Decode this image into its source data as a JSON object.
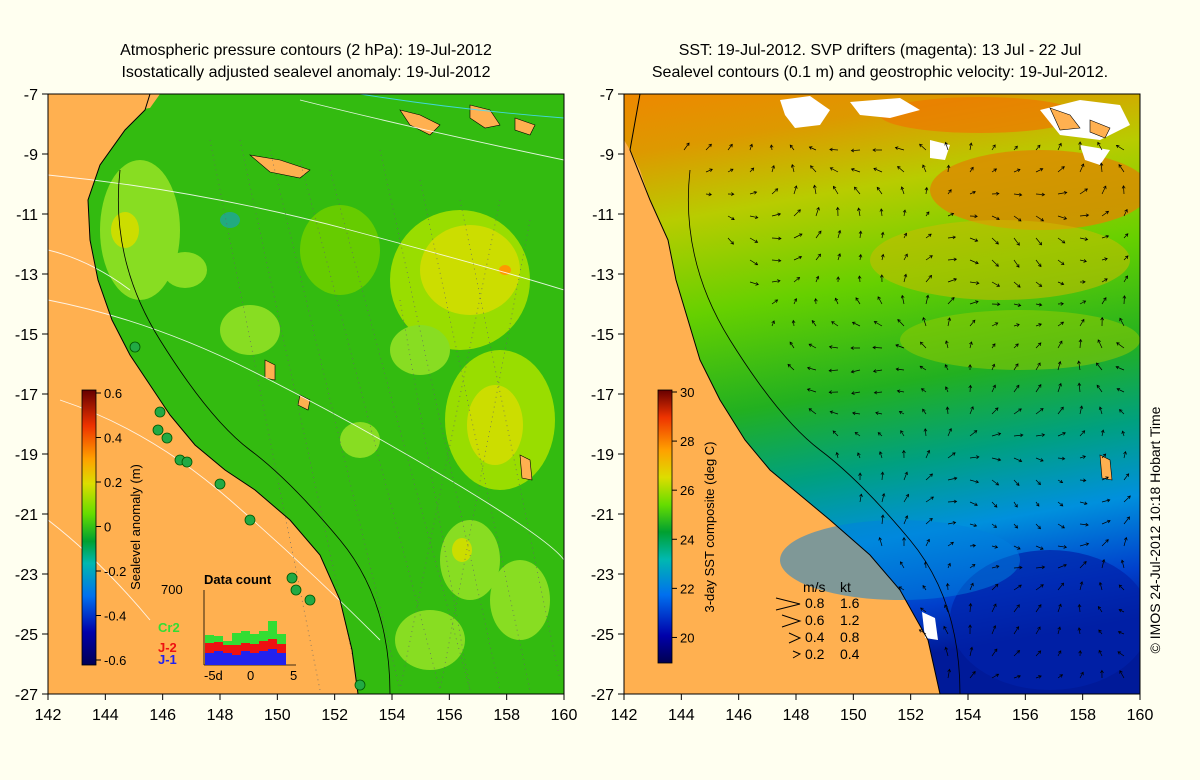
{
  "left_panel": {
    "title_line1": "Atmospheric pressure contours (2 hPa): 19-Jul-2012",
    "title_line2": "Isostatically adjusted sealevel anomaly: 19-Jul-2012",
    "x_ticks": [
      "142",
      "144",
      "146",
      "148",
      "150",
      "152",
      "154",
      "156",
      "158",
      "160"
    ],
    "y_ticks": [
      "-7",
      "-9",
      "-11",
      "-13",
      "-15",
      "-17",
      "-19",
      "-21",
      "-23",
      "-25",
      "-27"
    ],
    "colorbar": {
      "label": "Sealevel anomaly (m)",
      "ticks": [
        "0.6",
        "0.4",
        "0.2",
        "0",
        "-0.2",
        "-0.4",
        "-0.6"
      ],
      "range": [
        -0.6,
        0.6
      ]
    },
    "data_count": {
      "title": "Data count",
      "ymax_label": "700",
      "x_ticks": [
        "-5d",
        "0",
        "5"
      ],
      "legend": [
        {
          "label": "Cr2",
          "color": "#33dd33"
        },
        {
          "label": "J-2",
          "color": "#ee1111"
        },
        {
          "label": "J-1",
          "color": "#2222ee"
        }
      ]
    }
  },
  "right_panel": {
    "title_line1": "SST: 19-Jul-2012. SVP drifters (magenta): 13 Jul - 22 Jul",
    "title_line2": "Sealevel contours (0.1 m) and geostrophic velocity: 19-Jul-2012.",
    "x_ticks": [
      "142",
      "144",
      "146",
      "148",
      "150",
      "152",
      "154",
      "156",
      "158",
      "160"
    ],
    "y_ticks": [
      "-7",
      "-9",
      "-11",
      "-13",
      "-15",
      "-17",
      "-19",
      "-21",
      "-23",
      "-25",
      "-27"
    ],
    "colorbar": {
      "label": "3-day SST composite (deg C)",
      "ticks": [
        "30",
        "28",
        "26",
        "24",
        "22",
        "20"
      ],
      "range": [
        19,
        30
      ]
    },
    "velocity_legend": {
      "header_ms": "m/s",
      "header_kt": "kt",
      "rows": [
        {
          "ms": "0.8",
          "kt": "1.6"
        },
        {
          "ms": "0.6",
          "kt": "1.2"
        },
        {
          "ms": "0.4",
          "kt": "0.8"
        },
        {
          "ms": "0.2",
          "kt": "0.4"
        }
      ]
    }
  },
  "credit": "© IMOS 24-Jul-2012 10:18 Hobart Time"
}
